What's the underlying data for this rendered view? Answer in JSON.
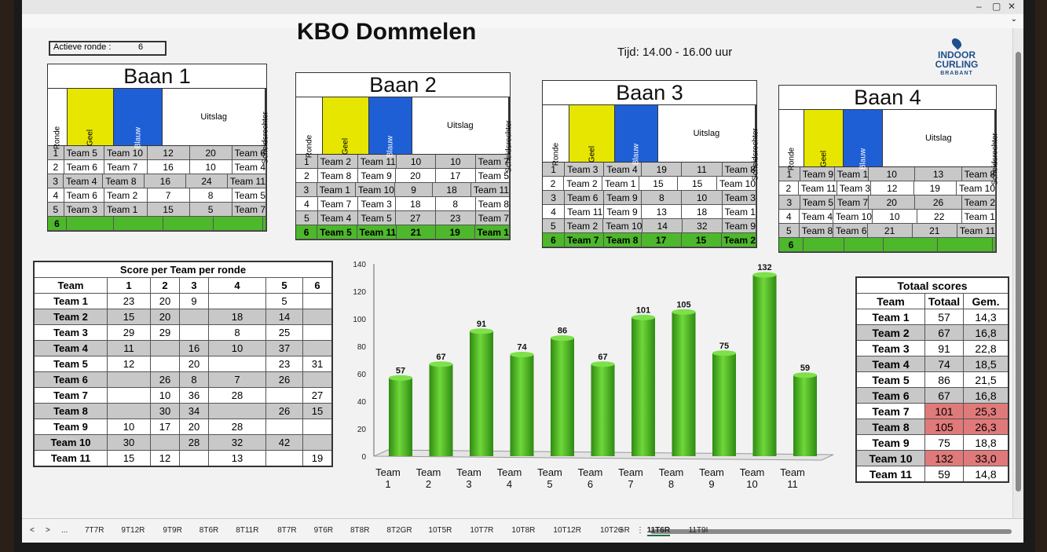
{
  "header": {
    "title": "KBO Dommelen",
    "tijd": "Tijd: 14.00 - 16.00 uur",
    "actieve_ronde_label": "Actieve ronde :",
    "actieve_ronde_value": "6",
    "logo_line1": "INDOOR",
    "logo_line2": "CURLING",
    "logo_line3": "BRABANT"
  },
  "baan_headers": {
    "ronde": "Ronde",
    "geel": "Geel",
    "blauw": "Blauw",
    "uitslag": "Uitslag",
    "schedsrechter": "Scheidsrechter"
  },
  "banen": [
    {
      "name": "Baan 1",
      "rows": [
        [
          "1",
          "Team 5",
          "Team 10",
          "12",
          "20",
          "Team 6"
        ],
        [
          "2",
          "Team 6",
          "Team 7",
          "16",
          "10",
          "Team 4"
        ],
        [
          "3",
          "Team 4",
          "Team 8",
          "16",
          "24",
          "Team 11"
        ],
        [
          "4",
          "Team 6",
          "Team 2",
          "7",
          "8",
          "Team 5"
        ],
        [
          "5",
          "Team 3",
          "Team 1",
          "15",
          "5",
          "Team 7"
        ],
        [
          "6",
          "",
          "",
          "",
          "",
          ""
        ]
      ]
    },
    {
      "name": "Baan 2",
      "rows": [
        [
          "1",
          "Team 2",
          "Team 11",
          "10",
          "10",
          "Team 7"
        ],
        [
          "2",
          "Team 8",
          "Team 9",
          "20",
          "17",
          "Team 5"
        ],
        [
          "3",
          "Team 1",
          "Team 10",
          "9",
          "18",
          "Team 11"
        ],
        [
          "4",
          "Team 7",
          "Team 3",
          "18",
          "8",
          "Team 8"
        ],
        [
          "5",
          "Team 4",
          "Team 5",
          "27",
          "23",
          "Team 7"
        ],
        [
          "6",
          "Team 5",
          "Team 11",
          "21",
          "19",
          "Team 1"
        ]
      ]
    },
    {
      "name": "Baan 3",
      "rows": [
        [
          "1",
          "Team 3",
          "Team 4",
          "19",
          "11",
          "Team 8"
        ],
        [
          "2",
          "Team 2",
          "Team 1",
          "15",
          "15",
          "Team 10"
        ],
        [
          "3",
          "Team 6",
          "Team 9",
          "8",
          "10",
          "Team 3"
        ],
        [
          "4",
          "Team 11",
          "Team 9",
          "13",
          "18",
          "Team 1"
        ],
        [
          "5",
          "Team 2",
          "Team 10",
          "14",
          "32",
          "Team 9"
        ],
        [
          "6",
          "Team 7",
          "Team 8",
          "17",
          "15",
          "Team 2"
        ]
      ]
    },
    {
      "name": "Baan 4",
      "rows": [
        [
          "1",
          "Team 9",
          "Team 1",
          "10",
          "13",
          "Team 8"
        ],
        [
          "2",
          "Team 11",
          "Team 3",
          "12",
          "19",
          "Team 10"
        ],
        [
          "3",
          "Team 5",
          "Team 7",
          "20",
          "26",
          "Team 2"
        ],
        [
          "4",
          "Team 4",
          "Team 10",
          "10",
          "22",
          "Team 1"
        ],
        [
          "5",
          "Team 8",
          "Team 6",
          "21",
          "21",
          "Team 11"
        ],
        [
          "6",
          "",
          "",
          "",
          "",
          ""
        ]
      ]
    }
  ],
  "score_table": {
    "title": "Score per Team per ronde",
    "headers": [
      "Team",
      "1",
      "2",
      "3",
      "4",
      "5",
      "6"
    ],
    "rows": [
      [
        "Team 1",
        "23",
        "20",
        "9",
        "",
        "5",
        ""
      ],
      [
        "Team 2",
        "15",
        "20",
        "",
        "18",
        "14",
        ""
      ],
      [
        "Team 3",
        "29",
        "29",
        "",
        "8",
        "25",
        ""
      ],
      [
        "Team 4",
        "11",
        "",
        "16",
        "10",
        "37",
        ""
      ],
      [
        "Team 5",
        "12",
        "",
        "20",
        "",
        "23",
        "31"
      ],
      [
        "Team 6",
        "",
        "26",
        "8",
        "7",
        "26",
        ""
      ],
      [
        "Team 7",
        "",
        "10",
        "36",
        "28",
        "",
        "27"
      ],
      [
        "Team 8",
        "",
        "30",
        "34",
        "",
        "26",
        "15"
      ],
      [
        "Team 9",
        "10",
        "17",
        "20",
        "28",
        "",
        ""
      ],
      [
        "Team 10",
        "30",
        "",
        "28",
        "32",
        "42",
        ""
      ],
      [
        "Team 11",
        "15",
        "12",
        "",
        "13",
        "",
        "19"
      ]
    ]
  },
  "totaal_table": {
    "title": "Totaal scores",
    "headers": [
      "Team",
      "Totaal",
      "Gem."
    ],
    "rows": [
      [
        "Team 1",
        "57",
        "14,3"
      ],
      [
        "Team 2",
        "67",
        "16,8"
      ],
      [
        "Team 3",
        "91",
        "22,8"
      ],
      [
        "Team 4",
        "74",
        "18,5"
      ],
      [
        "Team 5",
        "86",
        "21,5"
      ],
      [
        "Team 6",
        "67",
        "16,8"
      ],
      [
        "Team 7",
        "101",
        "25,3"
      ],
      [
        "Team 8",
        "105",
        "26,3"
      ],
      [
        "Team 9",
        "75",
        "18,8"
      ],
      [
        "Team 10",
        "132",
        "33,0"
      ],
      [
        "Team 11",
        "59",
        "14,8"
      ]
    ]
  },
  "chart_data": {
    "type": "bar",
    "categories": [
      "Team 1",
      "Team 2",
      "Team 3",
      "Team 4",
      "Team 5",
      "Team 6",
      "Team 7",
      "Team 8",
      "Team 9",
      "Team 10",
      "Team 11"
    ],
    "category_lines": [
      [
        "Team",
        "1"
      ],
      [
        "Team",
        "2"
      ],
      [
        "Team",
        "3"
      ],
      [
        "Team",
        "4"
      ],
      [
        "Team",
        "5"
      ],
      [
        "Team",
        "6"
      ],
      [
        "Team",
        "7"
      ],
      [
        "Team",
        "8"
      ],
      [
        "Team",
        "9"
      ],
      [
        "Team",
        "10"
      ],
      [
        "Team",
        "11"
      ]
    ],
    "values": [
      57,
      67,
      91,
      74,
      86,
      67,
      101,
      105,
      75,
      132,
      59
    ],
    "ylim": [
      0,
      140
    ],
    "yticks": [
      0,
      20,
      40,
      60,
      80,
      100,
      120,
      140
    ],
    "bar_color": "#3fb51e"
  },
  "tabs": {
    "nav_prev": "<",
    "nav_next": ">",
    "more": "...",
    "items": [
      "7T7R",
      "9T12R",
      "9T9R",
      "8T6R",
      "8T11R",
      "8T7R",
      "9T6R",
      "8T8R",
      "8T2GR",
      "10T5R",
      "10T7R",
      "10T8R",
      "10T12R",
      "10T2GR",
      "11T6R",
      "11T9I"
    ],
    "active": "11T6R",
    "add": "+",
    "menu": "⋮"
  }
}
